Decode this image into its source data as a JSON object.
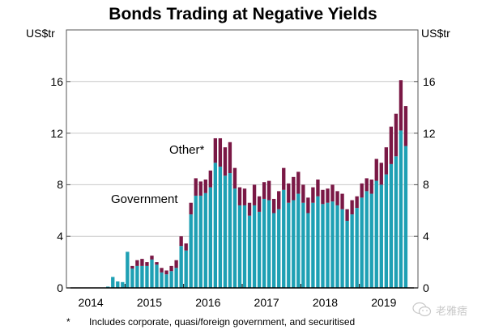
{
  "title": "Bonds Trading at Negative Yields",
  "footnote": {
    "marker": "*",
    "text": "Includes corporate, quasi/foreign government, and securitised"
  },
  "watermark": {
    "icon": "wechat-icon",
    "text": "老雅痞"
  },
  "colors": {
    "government": "#1ea0b4",
    "other": "#7a1845",
    "grid": "#c8c8c8",
    "axis": "#555555"
  },
  "chart_data": {
    "type": "bar",
    "stacked": true,
    "title": "Bonds Trading at Negative Yields",
    "xlabel": "",
    "ylabel": "US$tr",
    "ylabel_right": "US$tr",
    "ylim": [
      0,
      20
    ],
    "yticks": [
      0,
      4,
      8,
      12,
      16
    ],
    "ytick_labels": [
      "0",
      "4",
      "8",
      "12",
      "16"
    ],
    "xticks": [
      "2014",
      "2015",
      "2016",
      "2017",
      "2018",
      "2019"
    ],
    "x_range": [
      "2014-01",
      "2019-12"
    ],
    "grid": true,
    "frequency": "monthly",
    "start_month": "2014-09",
    "series_labels_position": "inline",
    "series": [
      {
        "name": "Government",
        "label": "Government",
        "values": [
          0.1,
          0.85,
          0.5,
          0.45,
          2.8,
          1.5,
          1.7,
          1.7,
          1.7,
          2.2,
          1.8,
          1.2,
          1.05,
          1.3,
          1.55,
          3.25,
          2.9,
          5.7,
          7.15,
          7.15,
          7.35,
          7.8,
          9.7,
          9.4,
          8.7,
          8.9,
          7.7,
          6.4,
          6.4,
          5.6,
          6.4,
          5.9,
          6.9,
          6.8,
          5.8,
          6.1,
          7.6,
          6.6,
          6.8,
          7.3,
          6.6,
          5.8,
          6.6,
          7.1,
          6.5,
          6.6,
          6.7,
          6.4,
          6.1,
          5.2,
          5.7,
          6.2,
          7.0,
          7.5,
          7.3,
          8.3,
          8.0,
          8.8,
          9.6,
          10.2,
          12.2,
          11.0
        ]
      },
      {
        "name": "Other*",
        "label": "Other*",
        "values": [
          0,
          0,
          0,
          0,
          0,
          0.2,
          0.45,
          0.55,
          0.3,
          0.3,
          0.2,
          0.35,
          0.3,
          0.4,
          0.6,
          0.75,
          0.55,
          0.9,
          1.35,
          1.1,
          1.05,
          1.3,
          1.9,
          2.2,
          2.2,
          2.4,
          1.6,
          1.4,
          1.3,
          1.0,
          1.6,
          1.2,
          1.3,
          1.5,
          1.1,
          1.4,
          1.7,
          1.5,
          1.8,
          1.7,
          1.4,
          1.2,
          1.2,
          1.3,
          1.1,
          1.1,
          1.3,
          1.1,
          1.2,
          0.9,
          1.1,
          0.9,
          1.1,
          1.0,
          1.1,
          1.7,
          1.7,
          2.1,
          2.9,
          3.3,
          3.9,
          3.1
        ]
      }
    ],
    "annotations": [
      {
        "text": "Other*",
        "series": "Other*"
      },
      {
        "text": "Government",
        "series": "Government"
      }
    ]
  }
}
